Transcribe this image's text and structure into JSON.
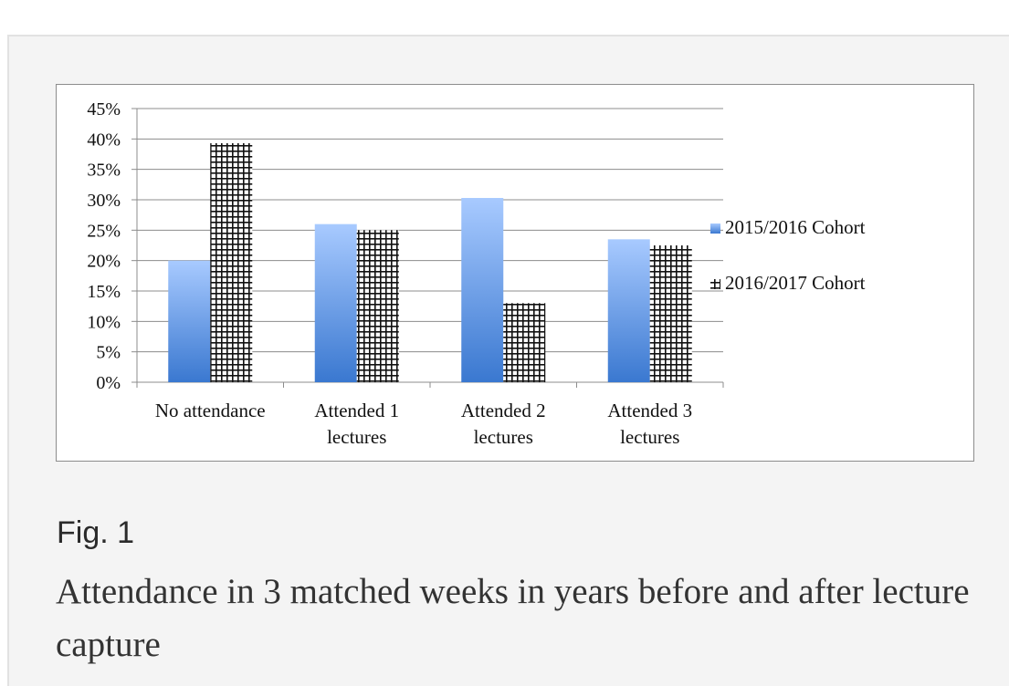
{
  "figure": {
    "label": "Fig. 1",
    "caption": "Attendance in 3 matched weeks in years before and after lecture capture"
  },
  "chart_data": {
    "type": "bar",
    "title": "",
    "xlabel": "",
    "ylabel": "",
    "ylim": [
      0,
      45
    ],
    "yticks": [
      "0%",
      "5%",
      "10%",
      "15%",
      "20%",
      "25%",
      "30%",
      "35%",
      "40%",
      "45%"
    ],
    "grid": true,
    "legend_position": "right",
    "categories": [
      [
        "No attendance"
      ],
      [
        "Attended 1",
        "lectures"
      ],
      [
        "Attended 2",
        "lectures"
      ],
      [
        "Attended 3",
        "lectures"
      ]
    ],
    "series": [
      {
        "name": "2015/2016 Cohort",
        "values": [
          20,
          26,
          30.3,
          23.5
        ],
        "fill": "gradient-blue"
      },
      {
        "name": "2016/2017 Cohort",
        "values": [
          39.3,
          25,
          13,
          22.5
        ],
        "fill": "checker"
      }
    ],
    "colors": {
      "blue_top": "#a8caff",
      "blue_bottom": "#3a78d0",
      "grid": "#8c8c8c",
      "text": "#111111"
    }
  }
}
